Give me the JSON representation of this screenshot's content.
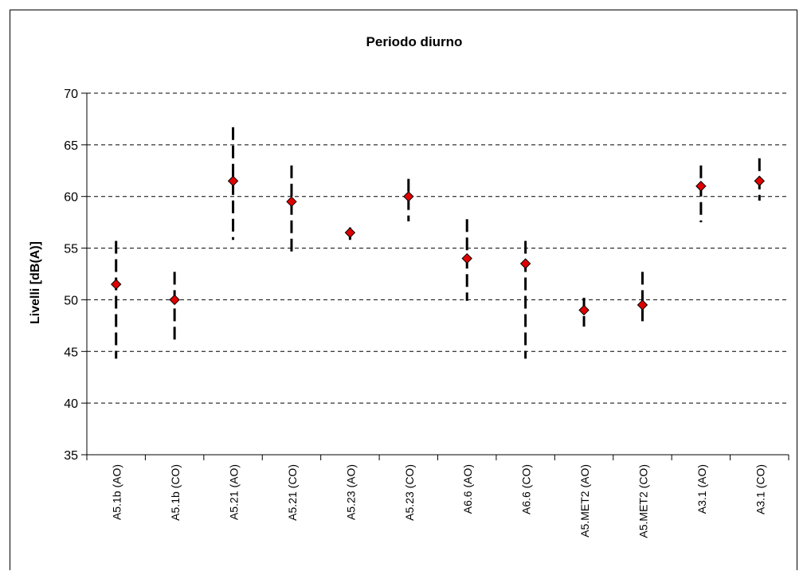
{
  "chart_data": {
    "type": "scatter",
    "title": "Periodo diurno",
    "xlabel": "",
    "ylabel": "Livelli [dB(A)]",
    "ylim": [
      35,
      70
    ],
    "yticks": [
      35,
      40,
      45,
      50,
      55,
      60,
      65,
      70
    ],
    "grid": "horizontal dashed",
    "legend": "none",
    "marker_color": "#e00000",
    "categories": [
      "A5.1b (AO)",
      "A5.1b (CO)",
      "A5.21 (AO)",
      "A5.21 (CO)",
      "A5.23 (AO)",
      "A5.23 (CO)",
      "A6.6 (AO)",
      "A6.6 (CO)",
      "A5.MET2 (AO)",
      "A5.MET2 (CO)",
      "A3.1 (AO)",
      "A3.1 (CO)"
    ],
    "series": [
      {
        "values": [
          51.5,
          50.0,
          61.5,
          59.5,
          56.5,
          60.0,
          54.0,
          53.5,
          49.0,
          49.5,
          61.0,
          61.5
        ],
        "error_low": [
          44.3,
          46.0,
          55.8,
          54.4,
          55.8,
          57.6,
          49.9,
          44.3,
          47.4,
          47.4,
          57.5,
          59.6
        ],
        "error_high": [
          55.7,
          52.7,
          66.7,
          63.0,
          57.0,
          61.7,
          57.8,
          55.7,
          50.2,
          52.7,
          63.0,
          63.7
        ]
      }
    ]
  }
}
